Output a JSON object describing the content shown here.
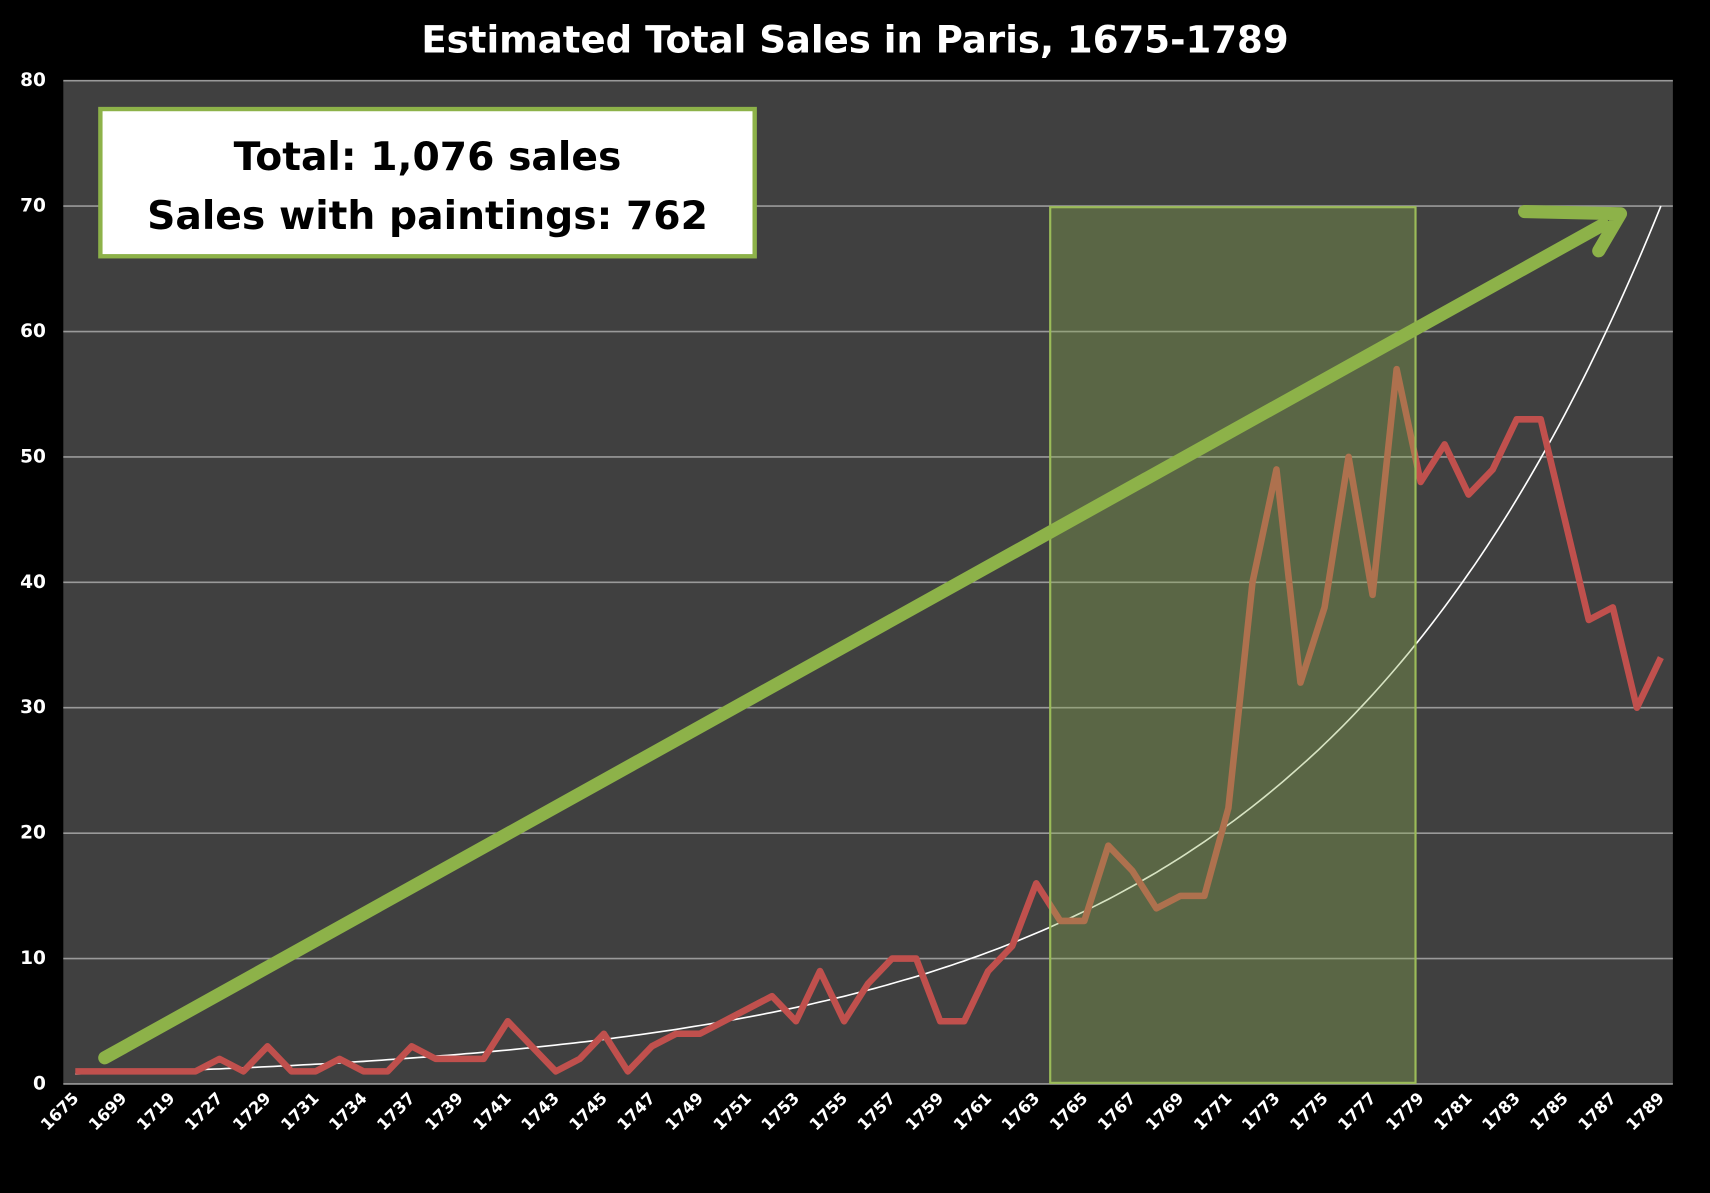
{
  "chart_data": {
    "type": "line",
    "title": "Estimated Total Sales in Paris, 1675-1789",
    "categories": [
      "1675",
      null,
      "1699",
      null,
      "1719",
      null,
      "1727",
      null,
      "1729",
      null,
      "1731",
      null,
      "1734",
      null,
      "1737",
      null,
      "1739",
      null,
      "1741",
      null,
      "1743",
      null,
      "1745",
      null,
      "1747",
      null,
      "1749",
      null,
      "1751",
      null,
      "1753",
      null,
      "1755",
      null,
      "1757",
      null,
      "1759",
      null,
      "1761",
      null,
      "1763",
      null,
      "1765",
      null,
      "1767",
      null,
      "1769",
      null,
      "1771",
      null,
      "1773",
      null,
      "1775",
      null,
      "1777",
      null,
      "1779",
      null,
      "1781",
      null,
      "1783",
      null,
      "1785",
      null,
      "1787",
      null,
      "1789"
    ],
    "series": [
      {
        "color": "#c0504d",
        "values": [
          1,
          1,
          1,
          1,
          1,
          1,
          2,
          1,
          3,
          1,
          1,
          2,
          1,
          1,
          3,
          2,
          2,
          2,
          5,
          3,
          1,
          2,
          4,
          1,
          3,
          4,
          4,
          5,
          6,
          7,
          5,
          9,
          5,
          8,
          10,
          10,
          5,
          5,
          9,
          11,
          16,
          13,
          13,
          19,
          17,
          14,
          15,
          15,
          22,
          40,
          49,
          32,
          38,
          50,
          39,
          57,
          48,
          51,
          47,
          49,
          53,
          53,
          45,
          37,
          38,
          30,
          34
        ]
      }
    ],
    "trendline": {
      "type": "exponential",
      "color": "#ffffff",
      "values": [
        0.8,
        70
      ]
    },
    "ylim": [
      0,
      80
    ],
    "yticks": [
      0,
      10,
      20,
      30,
      40,
      50,
      60,
      70,
      80
    ],
    "grid": true,
    "annotations": [
      "Total: 1,076 sales",
      "Sales with paintings: 762"
    ]
  }
}
